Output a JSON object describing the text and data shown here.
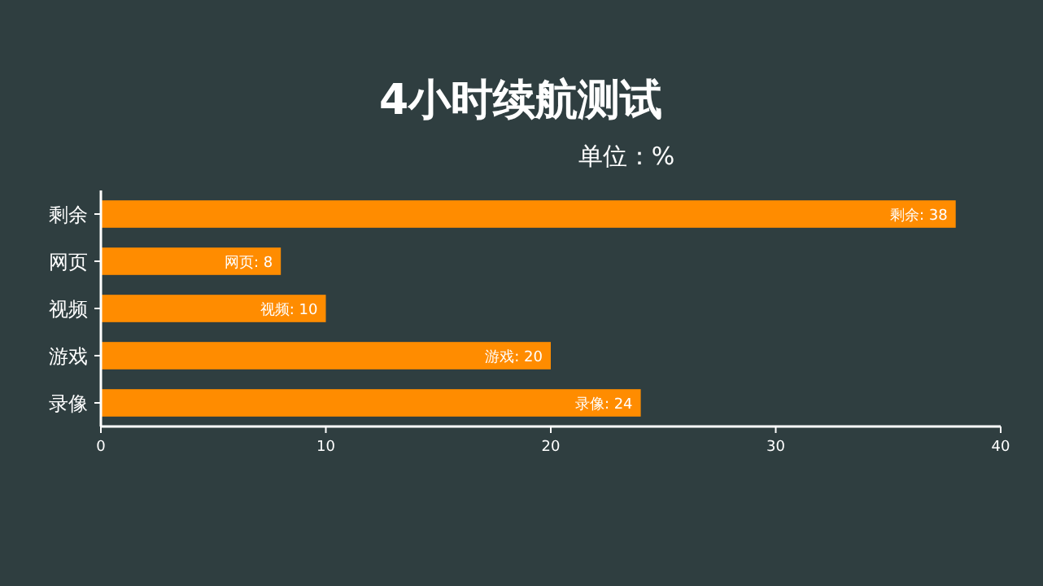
{
  "chart_data": {
    "type": "bar",
    "orientation": "horizontal",
    "title": "4小时续航测试",
    "subtitle": "单位：%",
    "categories": [
      "剩余",
      "网页",
      "视频",
      "游戏",
      "录像"
    ],
    "values": [
      38,
      8,
      10,
      20,
      24
    ],
    "value_labels": [
      "剩余: 38",
      "网页: 8",
      "视频: 10",
      "游戏: 20",
      "录像: 24"
    ],
    "color": "#ff8c00",
    "xlim": [
      0,
      40
    ],
    "xticks": [
      0,
      10,
      20,
      30,
      40
    ],
    "grid": false,
    "legend": false
  }
}
